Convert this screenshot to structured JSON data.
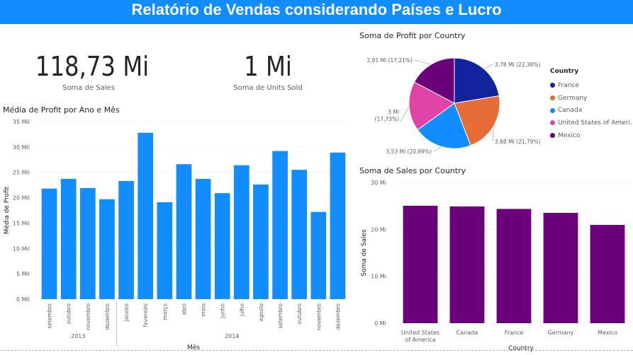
{
  "header": {
    "title": "Relatório de Vendas considerando Países e Lucro"
  },
  "kpis": [
    {
      "value": "118,73 Mi",
      "label": "Soma de  Sales"
    },
    {
      "value": "1 Mi",
      "label": "Soma de Units Sold"
    }
  ],
  "colors": {
    "banner": "#118dff",
    "bar_blue": "#118dff",
    "bar_purple": "#6b007b"
  },
  "chart_data": [
    {
      "type": "bar",
      "title": "Média de Profit por Ano e Mês",
      "xlabel": "Mês",
      "ylabel": "Média de Profit",
      "ylim": [
        0,
        35000
      ],
      "yticks": [
        "0 Mil",
        "5 Mil",
        "10 Mil",
        "15 Mil",
        "20 Mil",
        "25 Mil",
        "30 Mil",
        "35 Mil"
      ],
      "groups": [
        {
          "label": "2013",
          "categories": [
            "setembro",
            "outubro",
            "novembro",
            "dezembro"
          ],
          "values": [
            21800,
            23700,
            21900,
            19700
          ]
        },
        {
          "label": "2014",
          "categories": [
            "janeiro",
            "fevereiro",
            "março",
            "abril",
            "maio",
            "junho",
            "julho",
            "agosto",
            "setembro",
            "outubro",
            "novembro",
            "dezembro"
          ],
          "values": [
            23300,
            32800,
            19100,
            26600,
            23700,
            20900,
            26400,
            22600,
            29200,
            25500,
            17200,
            28900
          ]
        }
      ],
      "color": "#118dff",
      "grid": true
    },
    {
      "type": "pie",
      "title": "Soma de Profit por Country",
      "legend_title": "Country",
      "legend_position": "right",
      "slices": [
        {
          "name": "France",
          "value": 3.78,
          "label": "3,78 Mi (22,38%)",
          "color": "#12239e"
        },
        {
          "name": "Germany",
          "value": 3.68,
          "label": "3,68 Mi (21,79%)",
          "color": "#e66c37"
        },
        {
          "name": "Canada",
          "value": 3.53,
          "label": "3,53 Mi (20,89%)",
          "color": "#118dff"
        },
        {
          "name": "United States of Ameri...",
          "value": 3.0,
          "label": [
            "3 Mi",
            "(17,73%)"
          ],
          "color": "#e044a7"
        },
        {
          "name": "Mexico",
          "value": 2.91,
          "label": "2,91 Mi (17,21%)",
          "color": "#6b007b"
        }
      ]
    },
    {
      "type": "bar",
      "title": "Soma de Sales por Country",
      "xlabel": "Country",
      "ylabel": "Soma de Sales",
      "ylim": [
        0,
        30000000
      ],
      "yticks": [
        "0 Mi",
        "10 Mi",
        "20 Mi",
        "30 Mi"
      ],
      "categories": [
        [
          "United States",
          "of America"
        ],
        [
          "Canada"
        ],
        [
          "France"
        ],
        [
          "Germany"
        ],
        [
          "Mexico"
        ]
      ],
      "values": [
        25030000,
        24890000,
        24350000,
        23510000,
        20950000
      ],
      "color": "#6b007b",
      "grid": true
    }
  ]
}
